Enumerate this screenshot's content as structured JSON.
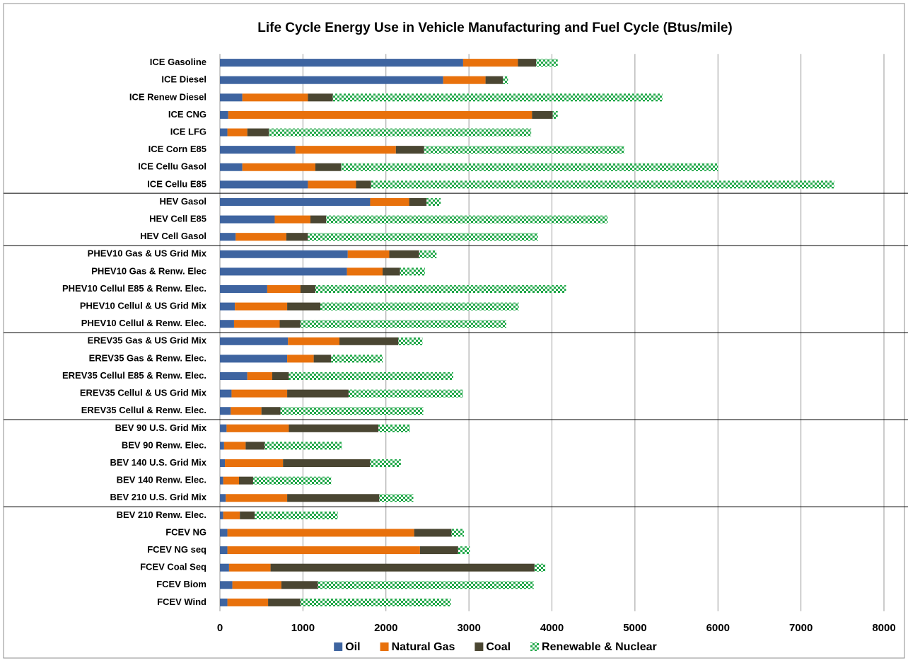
{
  "chart_data": {
    "type": "stacked-bar-horizontal",
    "title": "Life Cycle Energy Use in Vehicle Manufacturing and Fuel Cycle (Btus/mile)",
    "categories": [
      "ICE Gasoline",
      "ICE Diesel",
      "ICE Renew Diesel",
      "ICE CNG",
      "ICE LFG",
      "ICE Corn E85",
      "ICE Cellu Gasol",
      "ICE Cellu E85",
      "HEV Gasol",
      "HEV Cell E85",
      "HEV Cell Gasol",
      "PHEV10 Gas & US Grid Mix",
      "PHEV10 Gas & Renw. Elec",
      "PHEV10 Cellul E85 & Renw. Elec.",
      "PHEV10 Cellul & US Grid Mix",
      "PHEV10 Cellul & Renw. Elec.",
      "EREV35 Gas & US Grid Mix",
      "EREV35 Gas & Renw. Elec.",
      "EREV35 Cellul E85 & Renw. Elec.",
      "EREV35 Cellul & US Grid Mix",
      "EREV35 Cellul & Renw. Elec.",
      "BEV 90 U.S. Grid Mix",
      "BEV 90 Renw. Elec.",
      "BEV 140 U.S. Grid Mix",
      "BEV 140 Renw. Elec.",
      "BEV 210 U.S. Grid Mix",
      "BEV 210 Renw. Elec.",
      "FCEV NG",
      "FCEV NG seq",
      "FCEV Coal Seq",
      "FCEV Biom",
      "FCEV Wind"
    ],
    "series": [
      {
        "name": "Oil",
        "color": "#3e64a0",
        "values": [
          2930,
          2690,
          270,
          100,
          90,
          910,
          270,
          1060,
          1810,
          660,
          190,
          1540,
          1530,
          570,
          180,
          170,
          820,
          810,
          330,
          140,
          130,
          80,
          50,
          60,
          40,
          70,
          40,
          90,
          90,
          110,
          150,
          90
        ]
      },
      {
        "name": "Natural Gas",
        "color": "#e8710c",
        "values": [
          660,
          510,
          790,
          3660,
          240,
          1210,
          880,
          580,
          470,
          430,
          610,
          500,
          430,
          400,
          630,
          550,
          620,
          320,
          300,
          670,
          370,
          750,
          260,
          700,
          190,
          740,
          200,
          2250,
          2320,
          500,
          590,
          490
        ]
      },
      {
        "name": "Coal",
        "color": "#4a4632",
        "values": [
          220,
          210,
          300,
          250,
          260,
          340,
          310,
          180,
          210,
          190,
          260,
          360,
          210,
          180,
          400,
          250,
          710,
          210,
          200,
          740,
          230,
          1080,
          230,
          1050,
          170,
          1110,
          180,
          450,
          460,
          3180,
          440,
          390
        ]
      },
      {
        "name": "Renewable & Nuclear",
        "color": "#22a84a",
        "hatch": true,
        "values": [
          260,
          60,
          3970,
          60,
          3160,
          2410,
          4540,
          5580,
          170,
          3390,
          2770,
          210,
          300,
          3020,
          2390,
          2480,
          290,
          620,
          1980,
          1380,
          1720,
          380,
          930,
          370,
          940,
          410,
          1000,
          150,
          140,
          130,
          2600,
          1810
        ]
      }
    ],
    "xlim": [
      0,
      8000
    ],
    "xticks": [
      0,
      1000,
      2000,
      3000,
      4000,
      5000,
      6000,
      7000,
      8000
    ],
    "grid": true,
    "legend": "bottom"
  }
}
